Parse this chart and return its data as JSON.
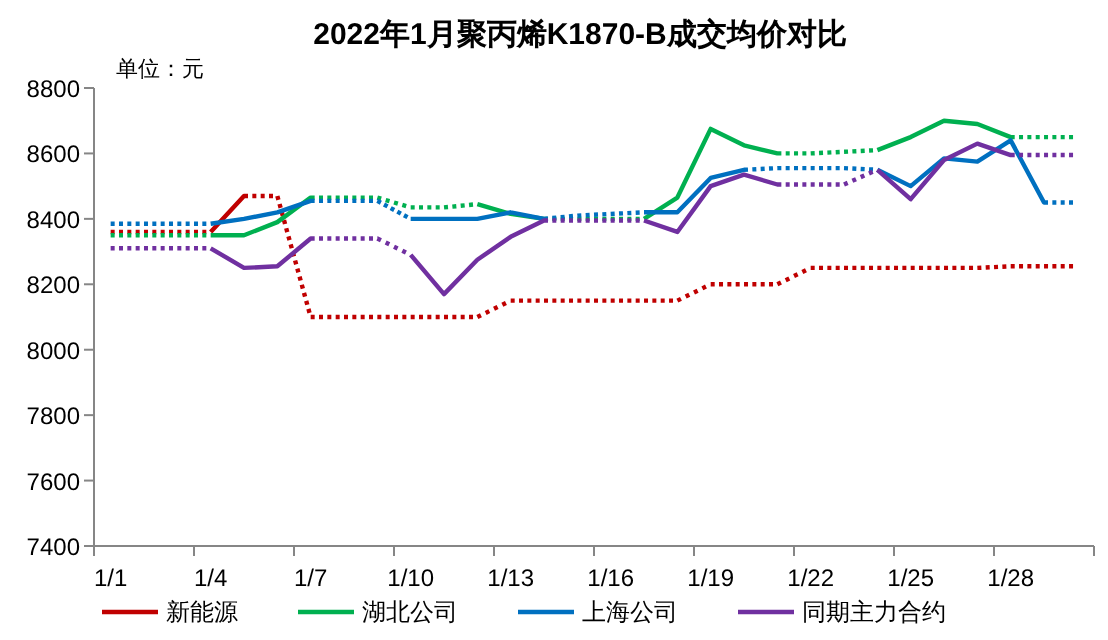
{
  "chart_data": {
    "type": "line",
    "title": "2022年1月聚丙烯K1870-B成交均价对比",
    "annotations": [
      "单位：元"
    ],
    "categories": [
      "1/1",
      null,
      null,
      "1/4",
      null,
      null,
      "1/7",
      null,
      null,
      "1/10",
      null,
      null,
      "1/13",
      null,
      null,
      "1/16",
      null,
      null,
      "1/19",
      null,
      null,
      "1/22",
      null,
      null,
      "1/25",
      null,
      null,
      "1/28",
      null,
      null
    ],
    "ylim": [
      7400,
      8800
    ],
    "yticks": [
      7400,
      7600,
      7800,
      8000,
      8200,
      8400,
      8600,
      8800
    ],
    "grid": false,
    "legend": "bottom",
    "marker": "none",
    "series": [
      {
        "name": "新能源",
        "color": "#c00000",
        "values": [
          8360,
          8360,
          8360,
          8360,
          8470,
          8470,
          8100,
          8100,
          8100,
          8100,
          8100,
          8100,
          8150,
          8150,
          8150,
          8150,
          8150,
          8150,
          8200,
          8200,
          8200,
          8250,
          8250,
          8250,
          8250,
          8250,
          8250,
          8255,
          8255,
          8255
        ],
        "line_style": [
          "dotted",
          "dotted",
          "dotted",
          "solid",
          "dotted",
          "dotted",
          "dotted",
          "dotted",
          "dotted",
          "dotted",
          "dotted",
          "dotted",
          "dotted",
          "dotted",
          "dotted",
          "dotted",
          "dotted",
          "dotted",
          "dotted",
          "dotted",
          "dotted",
          "dotted",
          "dotted",
          "dotted",
          "dotted",
          "dotted",
          "dotted",
          "dotted",
          "dotted"
        ]
      },
      {
        "name": "湖北公司",
        "color": "#00b050",
        "values": [
          8350,
          8350,
          8350,
          8350,
          8350,
          8390,
          8465,
          8465,
          8465,
          8435,
          8435,
          8445,
          8415,
          8400,
          8400,
          8400,
          8400,
          8465,
          8675,
          8625,
          8600,
          8600,
          8605,
          8610,
          8650,
          8700,
          8690,
          8650,
          8650,
          8650
        ],
        "line_style": [
          "dotted",
          "dotted",
          "dotted",
          "solid",
          "solid",
          "solid",
          "dotted",
          "dotted",
          "dotted",
          "dotted",
          "dotted",
          "solid",
          "solid",
          "dotted",
          "dotted",
          "dotted",
          "solid",
          "solid",
          "solid",
          "solid",
          "dotted",
          "dotted",
          "dotted",
          "solid",
          "solid",
          "solid",
          "solid",
          "dotted",
          "dotted"
        ]
      },
      {
        "name": "上海公司",
        "color": "#0070c0",
        "values": [
          8385,
          8385,
          8385,
          8385,
          8400,
          8420,
          8455,
          8455,
          8455,
          8400,
          8400,
          8400,
          8420,
          8400,
          8410,
          8415,
          8420,
          8420,
          8525,
          8550,
          8555,
          8555,
          8555,
          8550,
          8500,
          8585,
          8575,
          8640,
          8450,
          8450
        ],
        "line_style": [
          "dotted",
          "dotted",
          "dotted",
          "solid",
          "solid",
          "solid",
          "dotted",
          "dotted",
          "dotted",
          "solid",
          "solid",
          "solid",
          "solid",
          "dotted",
          "dotted",
          "dotted",
          "solid",
          "solid",
          "solid",
          "dotted",
          "dotted",
          "dotted",
          "dotted",
          "solid",
          "solid",
          "solid",
          "solid",
          "solid",
          "dotted"
        ]
      },
      {
        "name": "同期主力合约",
        "color": "#7030a0",
        "values": [
          8310,
          8310,
          8310,
          8310,
          8250,
          8255,
          8340,
          8340,
          8340,
          8290,
          8170,
          8275,
          8345,
          8395,
          8395,
          8395,
          8395,
          8360,
          8500,
          8535,
          8505,
          8505,
          8505,
          8550,
          8460,
          8580,
          8630,
          8595,
          8595,
          8595
        ],
        "line_style": [
          "dotted",
          "dotted",
          "dotted",
          "solid",
          "solid",
          "solid",
          "dotted",
          "dotted",
          "dotted",
          "solid",
          "solid",
          "solid",
          "solid",
          "dotted",
          "dotted",
          "dotted",
          "solid",
          "solid",
          "solid",
          "solid",
          "dotted",
          "dotted",
          "dotted",
          "solid",
          "solid",
          "solid",
          "solid",
          "dotted",
          "dotted"
        ]
      }
    ]
  }
}
